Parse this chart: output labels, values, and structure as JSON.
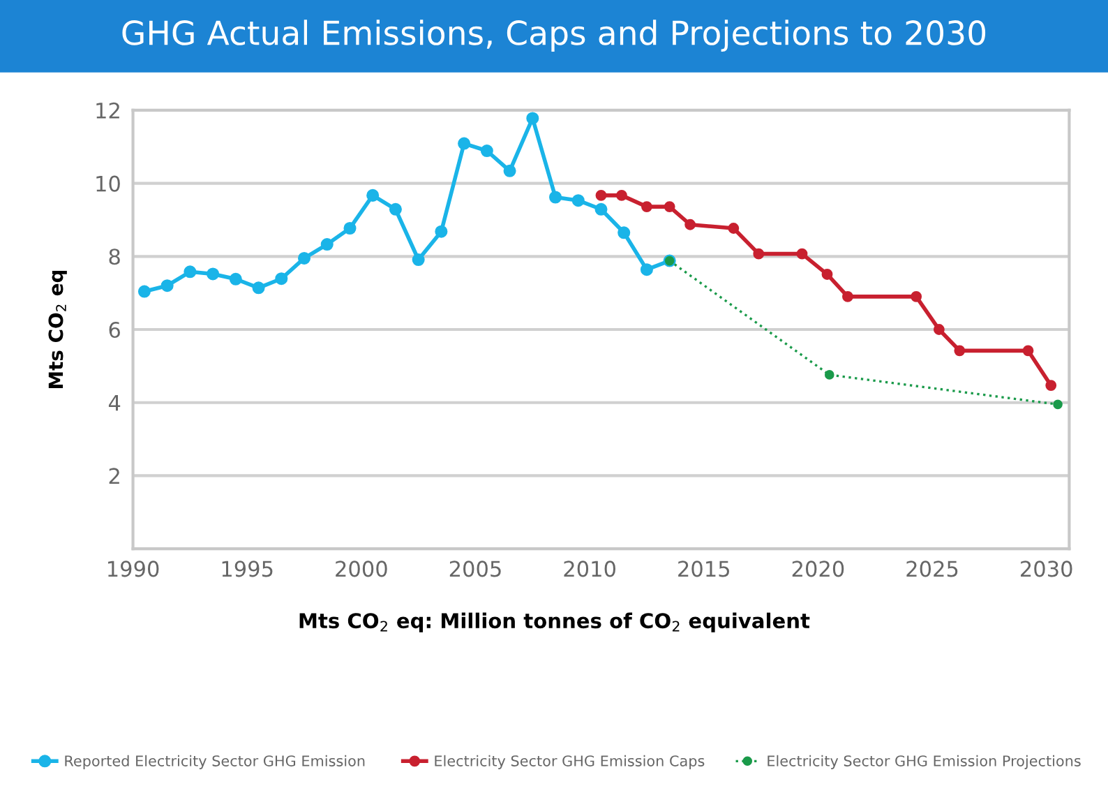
{
  "chart_data": {
    "type": "line",
    "title": "GHG Actual Emissions, Caps and Projections to 2030",
    "ylabel": "Mts CO$_{2}$ eq",
    "annotations": [
      "Mts CO$_{2}$ eq: Million tonnes of CO$_{2}$ equivalent"
    ],
    "xlim": [
      1990,
      2031
    ],
    "xticks": [
      1990,
      1995,
      2000,
      2005,
      2010,
      2015,
      2020,
      2025,
      2030
    ],
    "ylim": [
      0,
      12
    ],
    "yticks": [
      2,
      4,
      6,
      8,
      10,
      12
    ],
    "grid": "y",
    "legend": "bottom",
    "marker": "circle",
    "series": [
      {
        "name": "Reported Electricity Sector GHG Emission",
        "color": "#1ab4e8",
        "line_style": "solid",
        "x": [
          1990.5,
          1991.5,
          1992.5,
          1993.5,
          1994.5,
          1995.5,
          1996.5,
          1997.5,
          1998.5,
          1999.5,
          2000.5,
          2001.5,
          2002.5,
          2003.5,
          2004.5,
          2005.5,
          2006.5,
          2007.5,
          2008.5,
          2009.5,
          2010.5,
          2011.5,
          2012.5,
          2013.5
        ],
        "values": [
          7.04,
          7.2,
          7.58,
          7.52,
          7.38,
          7.14,
          7.39,
          7.95,
          8.33,
          8.77,
          9.67,
          9.29,
          7.91,
          8.68,
          11.09,
          10.89,
          10.34,
          11.78,
          9.62,
          9.53,
          9.29,
          8.65,
          7.64,
          7.88
        ]
      },
      {
        "name": "Electricity Sector GHG Emission Caps",
        "color": "#c8202f",
        "line_style": "solid",
        "x": [
          2010.5,
          2011.4,
          2012.5,
          2013.5,
          2014.4,
          2016.3,
          2017.4,
          2019.3,
          2020.4,
          2021.3,
          2024.3,
          2025.3,
          2026.2,
          2029.2,
          2030.2
        ],
        "values": [
          9.67,
          9.67,
          9.36,
          9.36,
          8.87,
          8.77,
          8.07,
          8.07,
          7.51,
          6.9,
          6.9,
          6.0,
          5.42,
          5.42,
          4.47
        ]
      },
      {
        "name": "Electricity Sector GHG Emission Projections",
        "color": "#1a9a4a",
        "line_style": "dotted",
        "x": [
          2013.5,
          2020.5,
          2030.5
        ],
        "values": [
          7.88,
          4.76,
          3.95
        ]
      }
    ]
  }
}
